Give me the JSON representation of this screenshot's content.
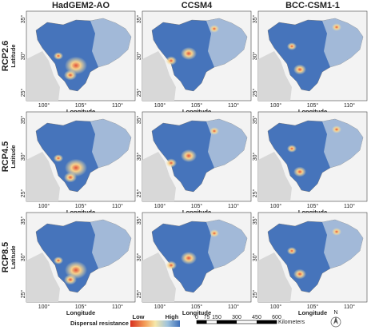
{
  "columns": [
    "HadGEM2-AO",
    "CCSM4",
    "BCC-CSM1-1"
  ],
  "rows": [
    "RCP2.6",
    "RCP4.5",
    "RCP8.5"
  ],
  "y_axis_label": "Latitude",
  "x_axis_label": "Longitude",
  "lat_ticks": [
    "35°",
    "30°",
    "25°"
  ],
  "lon_ticks": [
    "100°",
    "105°",
    "110°"
  ],
  "legend": {
    "title": "Dispersal resistance",
    "low": "Low",
    "high": "High"
  },
  "scale_bar": {
    "ticks": [
      "0",
      "75",
      "150",
      "300",
      "450",
      "600"
    ],
    "unit": "Kilometers"
  },
  "north": "N"
}
